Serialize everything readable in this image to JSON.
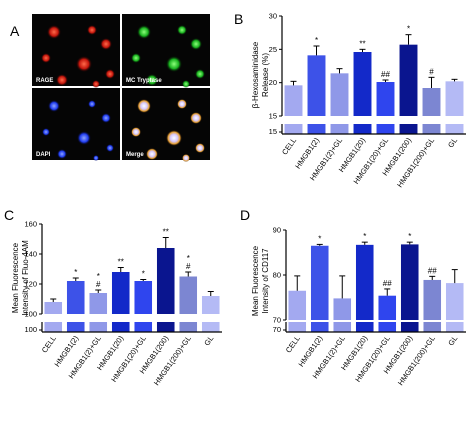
{
  "panels": {
    "A": {
      "letter": "A",
      "images": [
        {
          "label": "RAGE",
          "color": "#e8261c"
        },
        {
          "label": "MC Tryptase",
          "color": "#1fd62a"
        },
        {
          "label": "DAPI",
          "color": "#2c4cff"
        },
        {
          "label": "Merge",
          "color": "#f0e6ff"
        }
      ]
    },
    "B": {
      "letter": "B"
    },
    "C": {
      "letter": "C"
    },
    "D": {
      "letter": "D"
    }
  },
  "chart_data": [
    {
      "panel": "B",
      "type": "bar",
      "categories": [
        "CELL",
        "HMGB1(2)",
        "HMGB1(2)+GL",
        "HMGB1(20)",
        "HMGB1(20)+GL",
        "HMGB1(200)",
        "HMGB1(200)+GL",
        "GL"
      ],
      "values": [
        19.6,
        24.1,
        21.4,
        24.6,
        20.1,
        25.7,
        19.2,
        20.2
      ],
      "errors": [
        0.6,
        1.4,
        0.7,
        0.4,
        0.3,
        1.5,
        1.6,
        0.3
      ],
      "significance": [
        "",
        "*",
        "",
        "**",
        "##",
        "*",
        "#",
        ""
      ],
      "colors": [
        "#a3a9f0",
        "#3d52e8",
        "#8f98e8",
        "#1329c9",
        "#2f45ee",
        "#0a158f",
        "#7c86d2",
        "#b4baf5"
      ],
      "ylabel": "β-Hexosaminidase Release (%)",
      "ylim": [
        15,
        30
      ],
      "yticks": [
        15,
        20,
        25,
        30
      ],
      "broken_axis": true
    },
    {
      "panel": "C",
      "type": "bar",
      "categories": [
        "CELL",
        "HMGB1(2)",
        "HMGB1(2)+GL",
        "HMGB1(20)",
        "HMGB1(20)+GL",
        "HMGB1(200)",
        "HMGB1(200)+GL",
        "GL"
      ],
      "values": [
        108,
        122,
        114,
        128,
        122,
        144,
        125,
        112
      ],
      "errors": [
        2,
        2,
        2,
        3,
        1,
        7,
        3,
        3
      ],
      "significance": [
        "",
        "*",
        "* #",
        "**",
        "*",
        "**",
        "* #",
        ""
      ],
      "colors": [
        "#a3a9f0",
        "#3d52e8",
        "#8f98e8",
        "#1329c9",
        "#2f45ee",
        "#0a158f",
        "#7c86d2",
        "#b4baf5"
      ],
      "ylabel": "Mean Fluorescence Intensity of Fluo-4AM",
      "ylim": [
        100,
        160
      ],
      "yticks": [
        100,
        120,
        140,
        160
      ],
      "broken_axis": true
    },
    {
      "panel": "D",
      "type": "bar",
      "categories": [
        "CELL",
        "HMGB1(2)",
        "HMGB1(2)+GL",
        "HMGB1(20)",
        "HMGB1(20)+GL",
        "HMGB1(200)",
        "HMGB1(200)+GL",
        "GL"
      ],
      "values": [
        76.5,
        86.5,
        74.8,
        86.7,
        75.4,
        86.8,
        78.9,
        78.2
      ],
      "errors": [
        3.3,
        0.3,
        5.0,
        0.6,
        1.5,
        0.5,
        0.8,
        3.0
      ],
      "significance": [
        "",
        "*",
        "",
        "*",
        "##",
        "*",
        "##",
        ""
      ],
      "colors": [
        "#a3a9f0",
        "#3d52e8",
        "#8f98e8",
        "#1329c9",
        "#2f45ee",
        "#0a158f",
        "#7c86d2",
        "#b4baf5"
      ],
      "ylabel": "Mean Fluorescence Intensity of CD117",
      "ylim": [
        70,
        90
      ],
      "yticks": [
        70,
        80,
        90
      ],
      "broken_axis": true
    }
  ]
}
